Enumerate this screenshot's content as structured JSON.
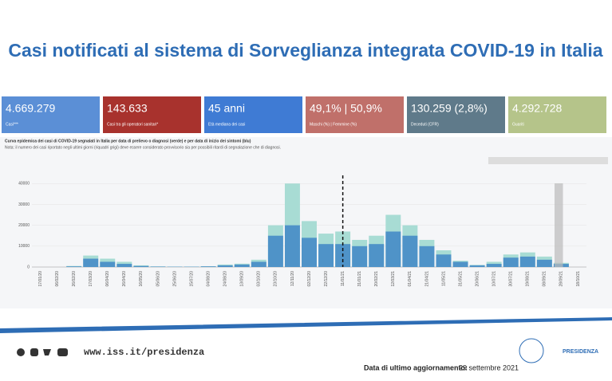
{
  "header": {
    "title": "Casi notificati al sistema di Sorveglianza integrata COVID-19 in Italia"
  },
  "kpis": [
    {
      "value": "4.669.279",
      "label": "Casi***",
      "color": "#5b8fd6"
    },
    {
      "value": "143.633",
      "label": "Casi tra gli operatori sanitari*",
      "color": "#a8322d"
    },
    {
      "value": "45 anni",
      "label": "Età mediana dei casi",
      "color": "#3f7bd4"
    },
    {
      "value": "49,1% | 50,9%",
      "label": "Maschi (%) | Femmine (%)",
      "color": "#c0706a"
    },
    {
      "value": "130.259 (2,8%)",
      "label": "Deceduti (CFR)",
      "color": "#5f7a8a"
    },
    {
      "value": "4.292.728",
      "label": "Guariti",
      "color": "#b5c48a"
    }
  ],
  "chart_data": {
    "type": "bar",
    "title": "Curva epidemica dei casi di COVID-19 segnalati in Italia per data di prelievo o diagnosi (verde) e per data di inizio dei sintomi (blu)",
    "subtitle": "Nota: il numero dei casi riportato negli ultimi giorni (riquadri grigi) deve essere considerato provvisorio sia per possibili ritardi di segnalazione che di diagnosi.",
    "categories": [
      "17/01/20",
      "06/02/20",
      "26/02/20",
      "17/03/20",
      "06/04/20",
      "26/04/20",
      "16/05/20",
      "05/06/20",
      "25/06/20",
      "15/07/20",
      "04/08/20",
      "24/08/20",
      "13/09/20",
      "03/10/20",
      "23/10/20",
      "12/11/20",
      "02/12/20",
      "22/12/20",
      "11/01/21",
      "31/01/21",
      "20/02/21",
      "12/03/21",
      "01/04/21",
      "21/04/21",
      "11/05/21",
      "31/05/21",
      "20/06/21",
      "10/07/21",
      "30/07/21",
      "19/08/21",
      "08/09/21",
      "28/09/21",
      "18/10/21"
    ],
    "series": [
      {
        "color": "#a8dcd4",
        "values": [
          0,
          0,
          500,
          5500,
          4000,
          2500,
          800,
          300,
          200,
          200,
          400,
          1200,
          1600,
          3500,
          20000,
          40000,
          22000,
          16000,
          17000,
          13000,
          15000,
          25000,
          20000,
          13000,
          8000,
          3000,
          1000,
          2500,
          6000,
          7000,
          5000,
          2000,
          null
        ]
      },
      {
        "color": "#4f93c8",
        "values": [
          0,
          0,
          300,
          4000,
          2500,
          1500,
          500,
          200,
          150,
          150,
          300,
          800,
          1200,
          2500,
          15000,
          20000,
          14000,
          11000,
          11000,
          10000,
          11000,
          17000,
          15000,
          10000,
          6000,
          2500,
          800,
          1500,
          4500,
          5000,
          3500,
          1500,
          null
        ]
      }
    ],
    "ylim": [
      0,
      42000
    ],
    "yticks": [
      0,
      10000,
      20000,
      30000,
      40000
    ]
  },
  "footer": {
    "url": "www.iss.it/presidenza",
    "update_label": "Data di ultimo aggiornamento:",
    "update_date": "29 settembre 2021",
    "logo": "PRESIDENZA"
  }
}
